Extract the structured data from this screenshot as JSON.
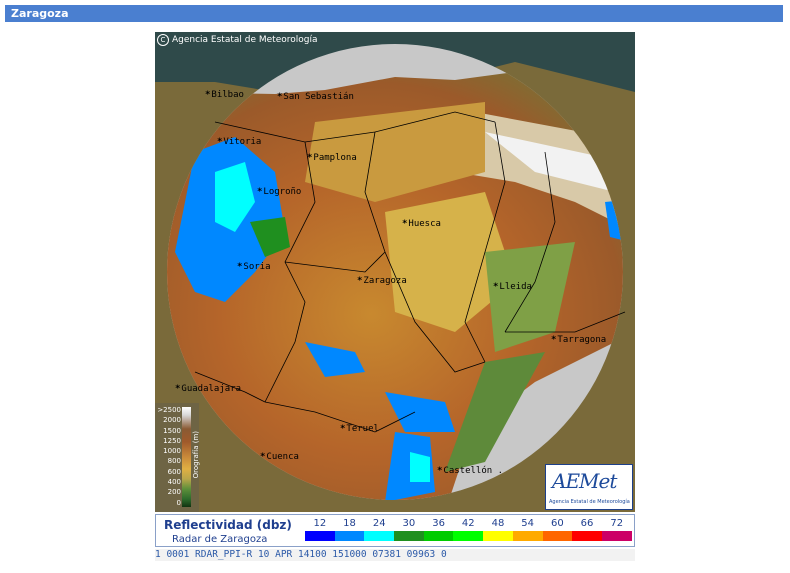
{
  "header": {
    "title": "Zaragoza"
  },
  "map": {
    "credit": "Agencia Estatal de Meteorología",
    "cities": [
      {
        "name": "Bilbao"
      },
      {
        "name": "San Sebastián"
      },
      {
        "name": "Vitoria"
      },
      {
        "name": "Pamplona"
      },
      {
        "name": "Logroño"
      },
      {
        "name": "Huesca"
      },
      {
        "name": "Soria"
      },
      {
        "name": "Zaragoza"
      },
      {
        "name": "Lleida"
      },
      {
        "name": "Tarragona"
      },
      {
        "name": "Guadalajara"
      },
      {
        "name": "Teruel"
      },
      {
        "name": "Cuenca"
      },
      {
        "name": "Castellón ."
      }
    ],
    "orography": {
      "title": "Orografía (m)",
      "levels": [
        ">2500",
        "2000",
        "1500",
        "1250",
        "1000",
        "800",
        "600",
        "400",
        "200",
        "0"
      ]
    },
    "logo": {
      "text": "AEMet",
      "subtitle": "Agencia Estatal de Meteorología"
    }
  },
  "legend": {
    "title": "Reflectividad (dbz)",
    "subtitle": "Radar de Zaragoza",
    "scale": [
      {
        "label": "12",
        "color": "#0000ff"
      },
      {
        "label": "18",
        "color": "#0088ff"
      },
      {
        "label": "24",
        "color": "#00ffff"
      },
      {
        "label": "30",
        "color": "#1f8f1f"
      },
      {
        "label": "36",
        "color": "#00cc00"
      },
      {
        "label": "42",
        "color": "#00ff00"
      },
      {
        "label": "48",
        "color": "#ffff00"
      },
      {
        "label": "54",
        "color": "#ffaa00"
      },
      {
        "label": "60",
        "color": "#ff6600"
      },
      {
        "label": "66",
        "color": "#ff0000"
      },
      {
        "label": "72",
        "color": "#cc0066"
      }
    ]
  },
  "info_line": "1  0001 RDAR_PPI-R   10 APR 14100 151000 07381 09963 0"
}
